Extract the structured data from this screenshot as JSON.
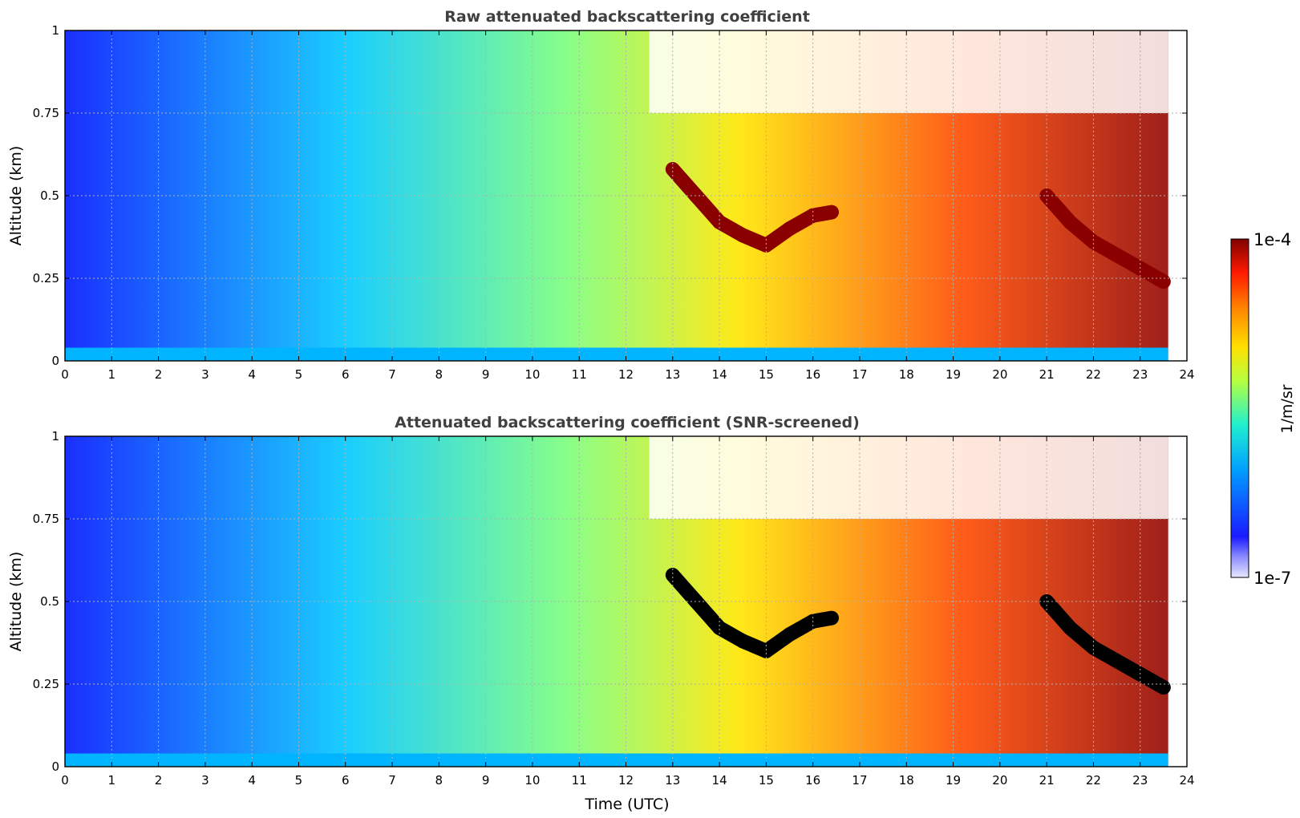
{
  "chart_data": [
    {
      "type": "heatmap",
      "title": "Raw attenuated backscattering coefficient",
      "xlabel": "",
      "ylabel": "Altitude (km)",
      "xlim": [
        0,
        24
      ],
      "ylim": [
        0,
        1
      ],
      "x_ticks": [
        "0",
        "1",
        "2",
        "3",
        "4",
        "5",
        "6",
        "7",
        "8",
        "9",
        "10",
        "11",
        "12",
        "13",
        "14",
        "15",
        "16",
        "17",
        "18",
        "19",
        "20",
        "21",
        "22",
        "23",
        "24"
      ],
      "y_ticks": [
        "0",
        "0.25",
        "0.5",
        "0.75",
        "1"
      ],
      "grid": true,
      "screened": false,
      "cloud_base_km": [
        [
          13.0,
          0.58
        ],
        [
          13.5,
          0.5
        ],
        [
          14.0,
          0.42
        ],
        [
          14.5,
          0.38
        ],
        [
          15.0,
          0.35
        ],
        [
          15.5,
          0.4
        ],
        [
          16.0,
          0.44
        ],
        [
          16.4,
          0.45
        ],
        [
          21.0,
          0.5
        ],
        [
          21.5,
          0.42
        ],
        [
          22.0,
          0.36
        ],
        [
          22.5,
          0.32
        ],
        [
          23.0,
          0.28
        ],
        [
          23.5,
          0.24
        ]
      ]
    },
    {
      "type": "heatmap",
      "title": "Attenuated backscattering coefficient (SNR-screened)",
      "xlabel": "Time (UTC)",
      "ylabel": "Altitude (km)",
      "xlim": [
        0,
        24
      ],
      "ylim": [
        0,
        1
      ],
      "x_ticks": [
        "0",
        "1",
        "2",
        "3",
        "4",
        "5",
        "6",
        "7",
        "8",
        "9",
        "10",
        "11",
        "12",
        "13",
        "14",
        "15",
        "16",
        "17",
        "18",
        "19",
        "20",
        "21",
        "22",
        "23",
        "24"
      ],
      "y_ticks": [
        "0",
        "0.25",
        "0.5",
        "0.75",
        "1"
      ],
      "grid": true,
      "screened": true,
      "cloud_base_km": [
        [
          13.0,
          0.58
        ],
        [
          13.5,
          0.5
        ],
        [
          14.0,
          0.42
        ],
        [
          14.5,
          0.38
        ],
        [
          15.0,
          0.35
        ],
        [
          15.5,
          0.4
        ],
        [
          16.0,
          0.44
        ],
        [
          16.4,
          0.45
        ],
        [
          21.0,
          0.5
        ],
        [
          21.5,
          0.42
        ],
        [
          22.0,
          0.36
        ],
        [
          22.5,
          0.32
        ],
        [
          23.0,
          0.28
        ],
        [
          23.5,
          0.24
        ]
      ]
    }
  ],
  "colorbar": {
    "label": "1/m/sr",
    "max_label": "1e-4",
    "min_label": "1e-7",
    "colormap": "jet"
  }
}
